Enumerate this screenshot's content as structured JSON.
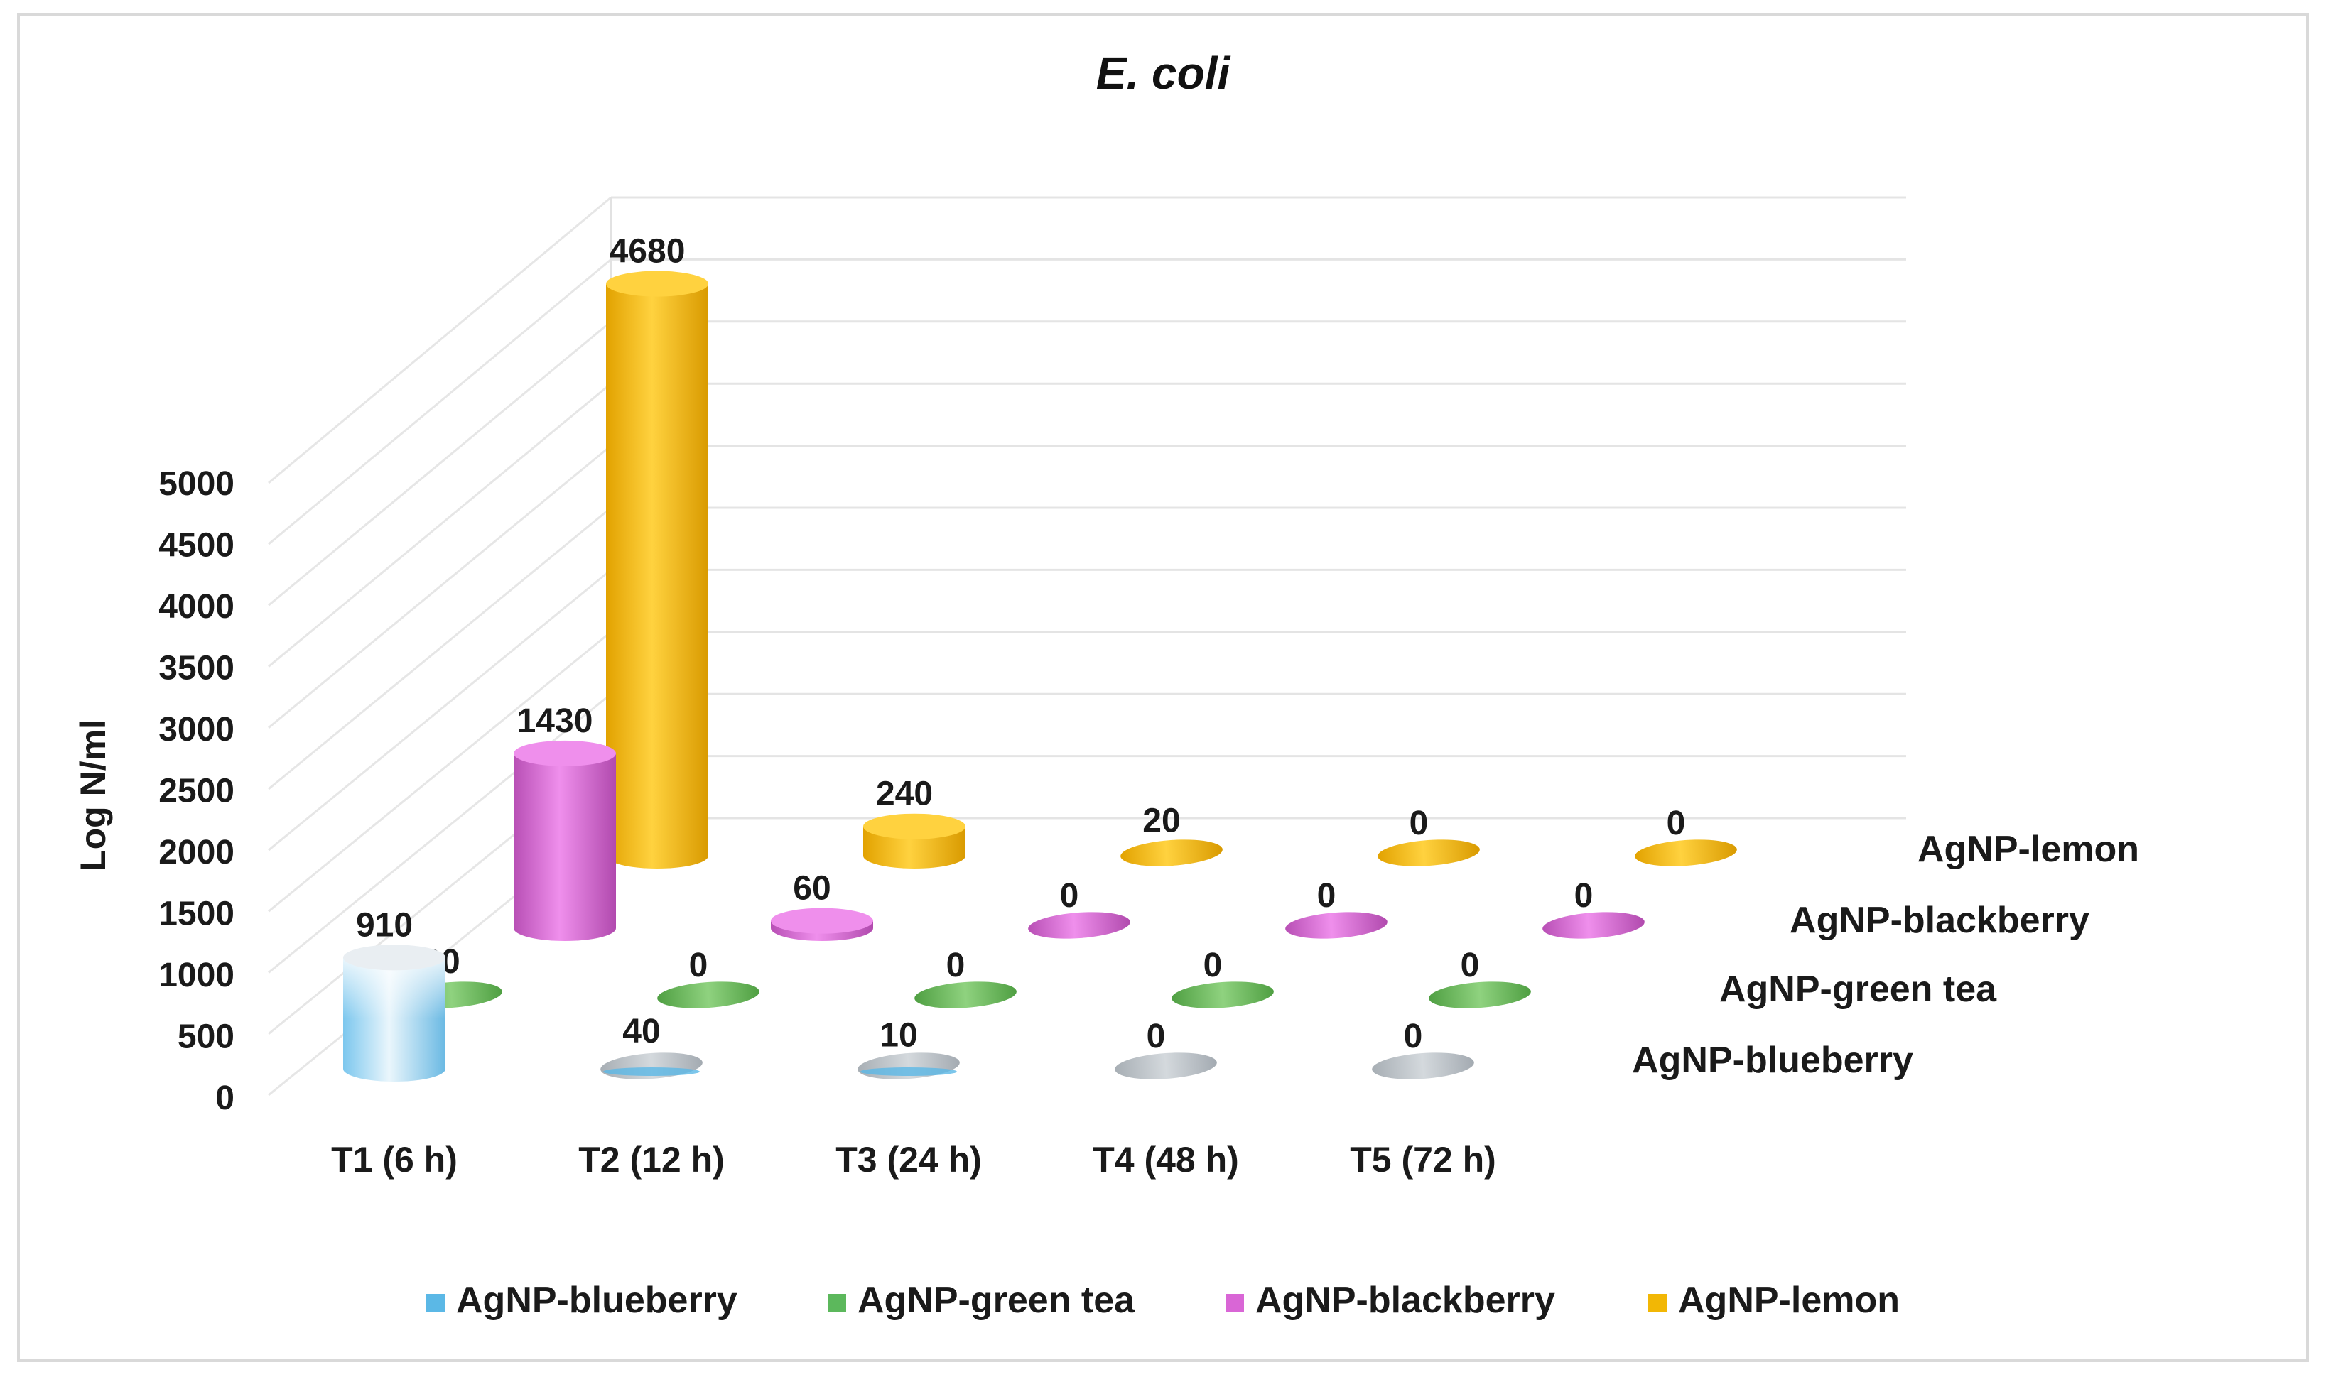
{
  "chart_data": {
    "type": "bar",
    "variant": "3d-cylinder",
    "title": "E. coli",
    "xlabel": "",
    "ylabel": "Log N/ml",
    "ylim": [
      0,
      5000
    ],
    "yticks": [
      "5000",
      "4500",
      "4000",
      "3500",
      "3000",
      "2500",
      "2000",
      "1500",
      "1000",
      "500",
      "0"
    ],
    "categories": [
      "T1 (6 h)",
      "T2 (12 h)",
      "T3 (24 h)",
      "T4 (48 h)",
      "T5 (72 h)"
    ],
    "series": [
      {
        "name": "AgNP-blueberry",
        "values": [
          910,
          40,
          10,
          0,
          0
        ]
      },
      {
        "name": "AgNP-green tea",
        "values": [
          30,
          0,
          0,
          0,
          0
        ]
      },
      {
        "name": "AgNP-blackberry",
        "values": [
          1430,
          60,
          0,
          0,
          0
        ]
      },
      {
        "name": "AgNP-lemon",
        "values": [
          4680,
          240,
          20,
          0,
          0
        ]
      }
    ],
    "depth_labels": [
      "AgNP-lemon",
      "AgNP-blackberry",
      "AgNP-green tea",
      "AgNP-blueberry"
    ],
    "legend": [
      "AgNP-blueberry",
      "AgNP-green tea",
      "AgNP-blackberry",
      "AgNP-lemon"
    ],
    "legend_position": "bottom",
    "grid": true
  },
  "colors": {
    "AgNP-blueberry": "#5bb8e6",
    "AgNP-green tea": "#5cb85c",
    "AgNP-blackberry": "#d966d6",
    "AgNP-lemon": "#f2b705",
    "gray_disc": "#b9c0c6"
  }
}
